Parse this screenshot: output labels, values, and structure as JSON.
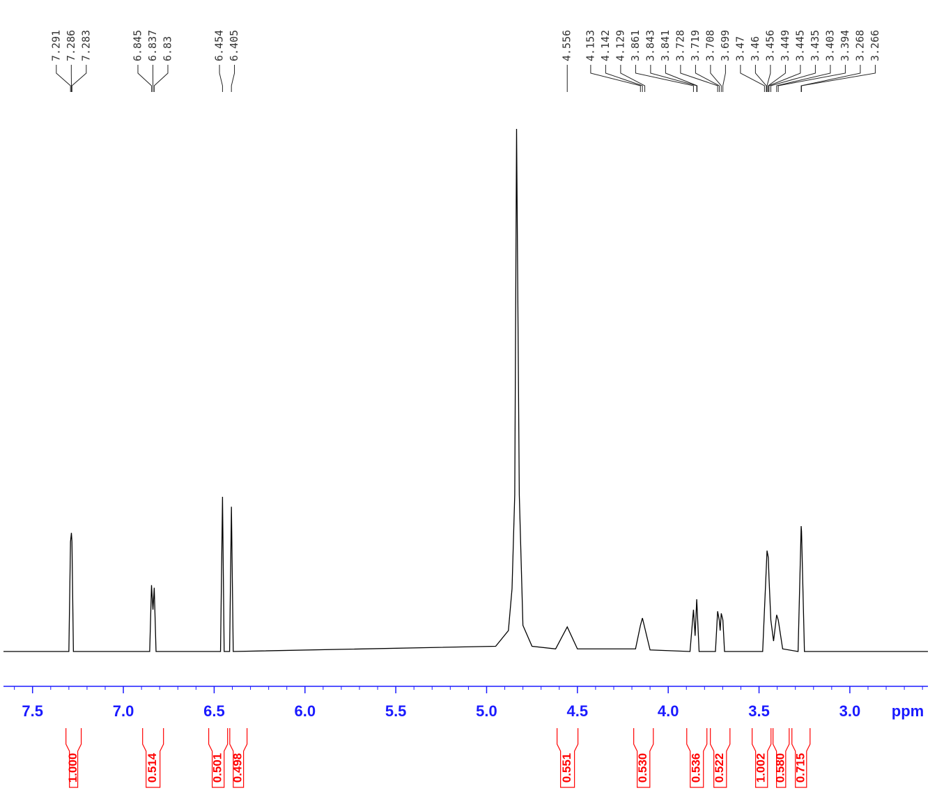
{
  "chart_data": {
    "type": "line",
    "xlabel": "ppm",
    "xlim": [
      7.66,
      2.57
    ],
    "ylim": [
      0,
      100
    ],
    "xticks": [
      7.5,
      {
        "value": 7,
        "label": "7.0"
      },
      6.5,
      {
        "value": 6,
        "label": "6.0"
      },
      5.5,
      {
        "value": 5,
        "label": "5.0"
      },
      4.5,
      {
        "value": 4,
        "label": "4.0"
      },
      3.5,
      {
        "value": 3,
        "label": "3.0"
      }
    ],
    "color": "#000000",
    "axis_color": "#1a1aff",
    "x": [
      7.66,
      7.3,
      7.291,
      7.286,
      7.283,
      7.275,
      6.855,
      6.845,
      6.837,
      6.83,
      6.82,
      6.465,
      6.454,
      6.445,
      6.415,
      6.405,
      6.395,
      4.95,
      4.88,
      4.86,
      4.845,
      4.835,
      4.82,
      4.8,
      4.75,
      4.62,
      4.556,
      4.5,
      4.18,
      4.153,
      4.142,
      4.129,
      4.1,
      3.88,
      3.861,
      3.852,
      3.843,
      3.83,
      3.74,
      3.728,
      3.719,
      3.714,
      3.708,
      3.699,
      3.69,
      3.48,
      3.47,
      3.46,
      3.456,
      3.449,
      3.445,
      3.435,
      3.42,
      3.403,
      3.394,
      3.37,
      3.285,
      3.268,
      3.266,
      3.25,
      2.57
    ],
    "values": [
      0,
      0,
      21,
      22.7,
      21,
      0,
      0,
      12.7,
      8,
      12.2,
      0,
      0,
      29.6,
      0,
      0,
      27.7,
      0,
      1,
      4,
      12,
      30,
      100,
      30,
      5,
      1,
      0.5,
      4.7,
      0.5,
      0.5,
      5,
      6.4,
      4.5,
      0.3,
      0,
      8,
      3,
      10,
      0,
      0,
      7.7,
      6,
      4,
      7.3,
      6,
      0,
      0,
      8,
      16,
      19.3,
      18,
      14,
      6,
      2,
      7,
      6,
      0.5,
      0,
      24,
      23,
      0,
      0
    ],
    "peaks": [
      7.291,
      7.286,
      7.283,
      6.845,
      6.837,
      6.83,
      6.454,
      6.405,
      4.556,
      4.153,
      4.142,
      4.129,
      3.861,
      3.843,
      3.841,
      3.728,
      3.719,
      3.708,
      3.699,
      3.47,
      3.46,
      3.456,
      3.449,
      3.445,
      3.435,
      3.403,
      3.394,
      3.268,
      3.266
    ],
    "integrals": {
      "color": "#ff0000",
      "ranges": [
        [
          7.316,
          7.232
        ],
        [
          6.894,
          6.779
        ],
        [
          6.53,
          6.426
        ],
        [
          6.414,
          6.319
        ],
        [
          4.612,
          4.497
        ],
        [
          4.19,
          4.082
        ],
        [
          3.898,
          3.787
        ],
        [
          3.768,
          3.66
        ],
        [
          3.538,
          3.434
        ],
        [
          3.423,
          3.334
        ],
        [
          3.319,
          3.219
        ]
      ],
      "values": [
        1,
        0.514,
        0.501,
        0.498,
        0.551,
        0.53,
        0.536,
        0.522,
        1.002,
        0.58,
        0.715
      ],
      "value_labels": [
        "1.000",
        "0.514",
        "0.501",
        "0.498",
        "0.551",
        "0.530",
        "0.536",
        "0.522",
        "1.002",
        "0.580",
        "0.715"
      ]
    }
  }
}
